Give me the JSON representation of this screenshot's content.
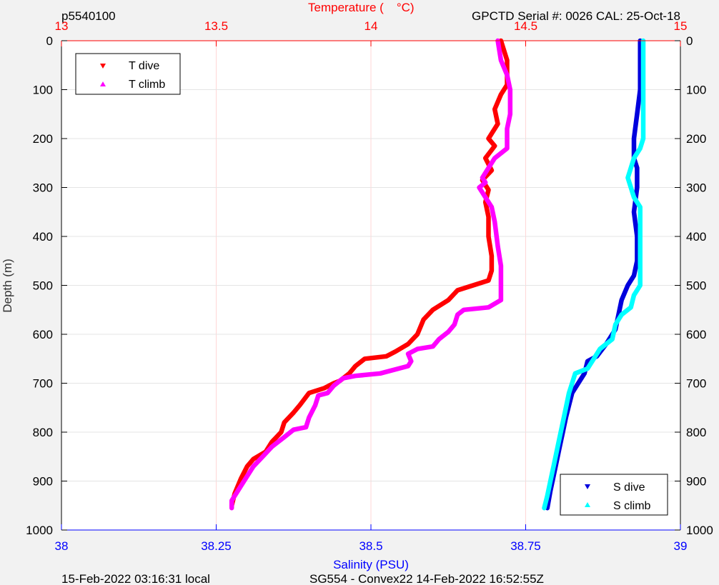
{
  "header": {
    "profile_id": "p5540100",
    "serial": "GPCTD Serial #: 0026 CAL: 25-Oct-18"
  },
  "footer": {
    "local_time": "15-Feb-2022 03:16:31 local",
    "mission": "SG554 - Convex22 14-Feb-2022 16:52:55Z"
  },
  "chart_data": {
    "type": "line",
    "axes": {
      "temperature": {
        "label_left": "Temperature (",
        "label_right": "°C)",
        "range": [
          13,
          15
        ],
        "ticks": [
          "13",
          "13.5",
          "14",
          "14.5",
          "15"
        ],
        "color": "#ff0000"
      },
      "salinity": {
        "label": "Salinity (PSU)",
        "range": [
          38,
          39
        ],
        "ticks": [
          "38",
          "38.25",
          "38.5",
          "38.75",
          "39"
        ],
        "color": "#0000ff"
      },
      "depth": {
        "label": "Depth (m)",
        "range": [
          0,
          1000
        ],
        "inverted": true,
        "ticks": [
          "0",
          "100",
          "200",
          "300",
          "400",
          "500",
          "600",
          "700",
          "800",
          "900",
          "1000"
        ]
      }
    },
    "grid": true,
    "legend_temperature": {
      "position": "top-left",
      "entries": [
        {
          "label": "T dive",
          "color": "#ff0000",
          "marker": "down-triangle"
        },
        {
          "label": "T climb",
          "color": "#ff00ff",
          "marker": "up-triangle"
        }
      ]
    },
    "legend_salinity": {
      "position": "bottom-right",
      "entries": [
        {
          "label": "S dive",
          "color": "#0000dd",
          "marker": "down-triangle"
        },
        {
          "label": "S climb",
          "color": "#00ffff",
          "marker": "up-triangle"
        }
      ]
    },
    "series": [
      {
        "name": "T dive",
        "axis": "temperature",
        "color": "#ff0000",
        "points": [
          [
            14.42,
            0
          ],
          [
            14.44,
            40
          ],
          [
            14.44,
            90
          ],
          [
            14.42,
            110
          ],
          [
            14.4,
            140
          ],
          [
            14.41,
            170
          ],
          [
            14.38,
            200
          ],
          [
            14.4,
            215
          ],
          [
            14.37,
            240
          ],
          [
            14.39,
            265
          ],
          [
            14.36,
            285
          ],
          [
            14.38,
            305
          ],
          [
            14.37,
            330
          ],
          [
            14.38,
            360
          ],
          [
            14.38,
            400
          ],
          [
            14.39,
            440
          ],
          [
            14.39,
            470
          ],
          [
            14.38,
            490
          ],
          [
            14.33,
            500
          ],
          [
            14.28,
            510
          ],
          [
            14.25,
            530
          ],
          [
            14.2,
            550
          ],
          [
            14.17,
            570
          ],
          [
            14.15,
            600
          ],
          [
            14.12,
            620
          ],
          [
            14.08,
            635
          ],
          [
            14.05,
            645
          ],
          [
            13.98,
            650
          ],
          [
            13.97,
            655
          ],
          [
            13.95,
            665
          ],
          [
            13.93,
            680
          ],
          [
            13.9,
            695
          ],
          [
            13.88,
            700
          ],
          [
            13.85,
            710
          ],
          [
            13.8,
            720
          ],
          [
            13.77,
            745
          ],
          [
            13.75,
            760
          ],
          [
            13.72,
            780
          ],
          [
            13.71,
            800
          ],
          [
            13.68,
            820
          ],
          [
            13.66,
            840
          ],
          [
            13.62,
            855
          ],
          [
            13.6,
            870
          ],
          [
            13.58,
            895
          ],
          [
            13.56,
            925
          ],
          [
            13.55,
            950
          ]
        ]
      },
      {
        "name": "T climb",
        "axis": "temperature",
        "color": "#ff00ff",
        "points": [
          [
            14.41,
            0
          ],
          [
            14.42,
            40
          ],
          [
            14.44,
            70
          ],
          [
            14.45,
            100
          ],
          [
            14.45,
            150
          ],
          [
            14.44,
            180
          ],
          [
            14.44,
            220
          ],
          [
            14.4,
            240
          ],
          [
            14.38,
            260
          ],
          [
            14.36,
            280
          ],
          [
            14.37,
            290
          ],
          [
            14.35,
            300
          ],
          [
            14.37,
            320
          ],
          [
            14.39,
            340
          ],
          [
            14.4,
            370
          ],
          [
            14.41,
            420
          ],
          [
            14.42,
            460
          ],
          [
            14.42,
            500
          ],
          [
            14.42,
            530
          ],
          [
            14.38,
            545
          ],
          [
            14.3,
            550
          ],
          [
            14.28,
            560
          ],
          [
            14.27,
            580
          ],
          [
            14.25,
            595
          ],
          [
            14.22,
            610
          ],
          [
            14.2,
            625
          ],
          [
            14.15,
            630
          ],
          [
            14.12,
            640
          ],
          [
            14.13,
            655
          ],
          [
            14.12,
            665
          ],
          [
            14.03,
            680
          ],
          [
            13.95,
            685
          ],
          [
            13.91,
            690
          ],
          [
            13.88,
            705
          ],
          [
            13.86,
            720
          ],
          [
            13.83,
            725
          ],
          [
            13.82,
            745
          ],
          [
            13.8,
            770
          ],
          [
            13.79,
            790
          ],
          [
            13.75,
            795
          ],
          [
            13.72,
            810
          ],
          [
            13.68,
            830
          ],
          [
            13.65,
            850
          ],
          [
            13.62,
            870
          ],
          [
            13.6,
            890
          ],
          [
            13.58,
            910
          ],
          [
            13.55,
            940
          ],
          [
            13.55,
            955
          ]
        ]
      },
      {
        "name": "S dive",
        "axis": "salinity",
        "color": "#0000dd",
        "points": [
          [
            38.935,
            0
          ],
          [
            38.935,
            50
          ],
          [
            38.935,
            100
          ],
          [
            38.93,
            150
          ],
          [
            38.925,
            200
          ],
          [
            38.925,
            240
          ],
          [
            38.93,
            260
          ],
          [
            38.93,
            300
          ],
          [
            38.925,
            350
          ],
          [
            38.93,
            400
          ],
          [
            38.93,
            450
          ],
          [
            38.925,
            480
          ],
          [
            38.915,
            500
          ],
          [
            38.905,
            530
          ],
          [
            38.9,
            560
          ],
          [
            38.895,
            590
          ],
          [
            38.88,
            620
          ],
          [
            38.865,
            645
          ],
          [
            38.85,
            655
          ],
          [
            38.845,
            680
          ],
          [
            38.835,
            700
          ],
          [
            38.825,
            720
          ],
          [
            38.82,
            745
          ],
          [
            38.815,
            770
          ],
          [
            38.81,
            800
          ],
          [
            38.805,
            830
          ],
          [
            38.8,
            860
          ],
          [
            38.795,
            890
          ],
          [
            38.79,
            920
          ],
          [
            38.785,
            955
          ]
        ]
      },
      {
        "name": "S climb",
        "axis": "salinity",
        "color": "#00ffff",
        "points": [
          [
            38.94,
            0
          ],
          [
            38.94,
            50
          ],
          [
            38.94,
            100
          ],
          [
            38.94,
            150
          ],
          [
            38.94,
            200
          ],
          [
            38.935,
            220
          ],
          [
            38.925,
            240
          ],
          [
            38.92,
            260
          ],
          [
            38.915,
            280
          ],
          [
            38.92,
            300
          ],
          [
            38.925,
            320
          ],
          [
            38.935,
            340
          ],
          [
            38.935,
            400
          ],
          [
            38.935,
            450
          ],
          [
            38.935,
            500
          ],
          [
            38.925,
            520
          ],
          [
            38.92,
            545
          ],
          [
            38.905,
            560
          ],
          [
            38.895,
            580
          ],
          [
            38.89,
            610
          ],
          [
            38.87,
            630
          ],
          [
            38.86,
            650
          ],
          [
            38.85,
            670
          ],
          [
            38.83,
            680
          ],
          [
            38.825,
            700
          ],
          [
            38.82,
            720
          ],
          [
            38.815,
            750
          ],
          [
            38.81,
            780
          ],
          [
            38.805,
            810
          ],
          [
            38.8,
            840
          ],
          [
            38.795,
            870
          ],
          [
            38.79,
            900
          ],
          [
            38.785,
            930
          ],
          [
            38.78,
            955
          ]
        ]
      }
    ]
  }
}
